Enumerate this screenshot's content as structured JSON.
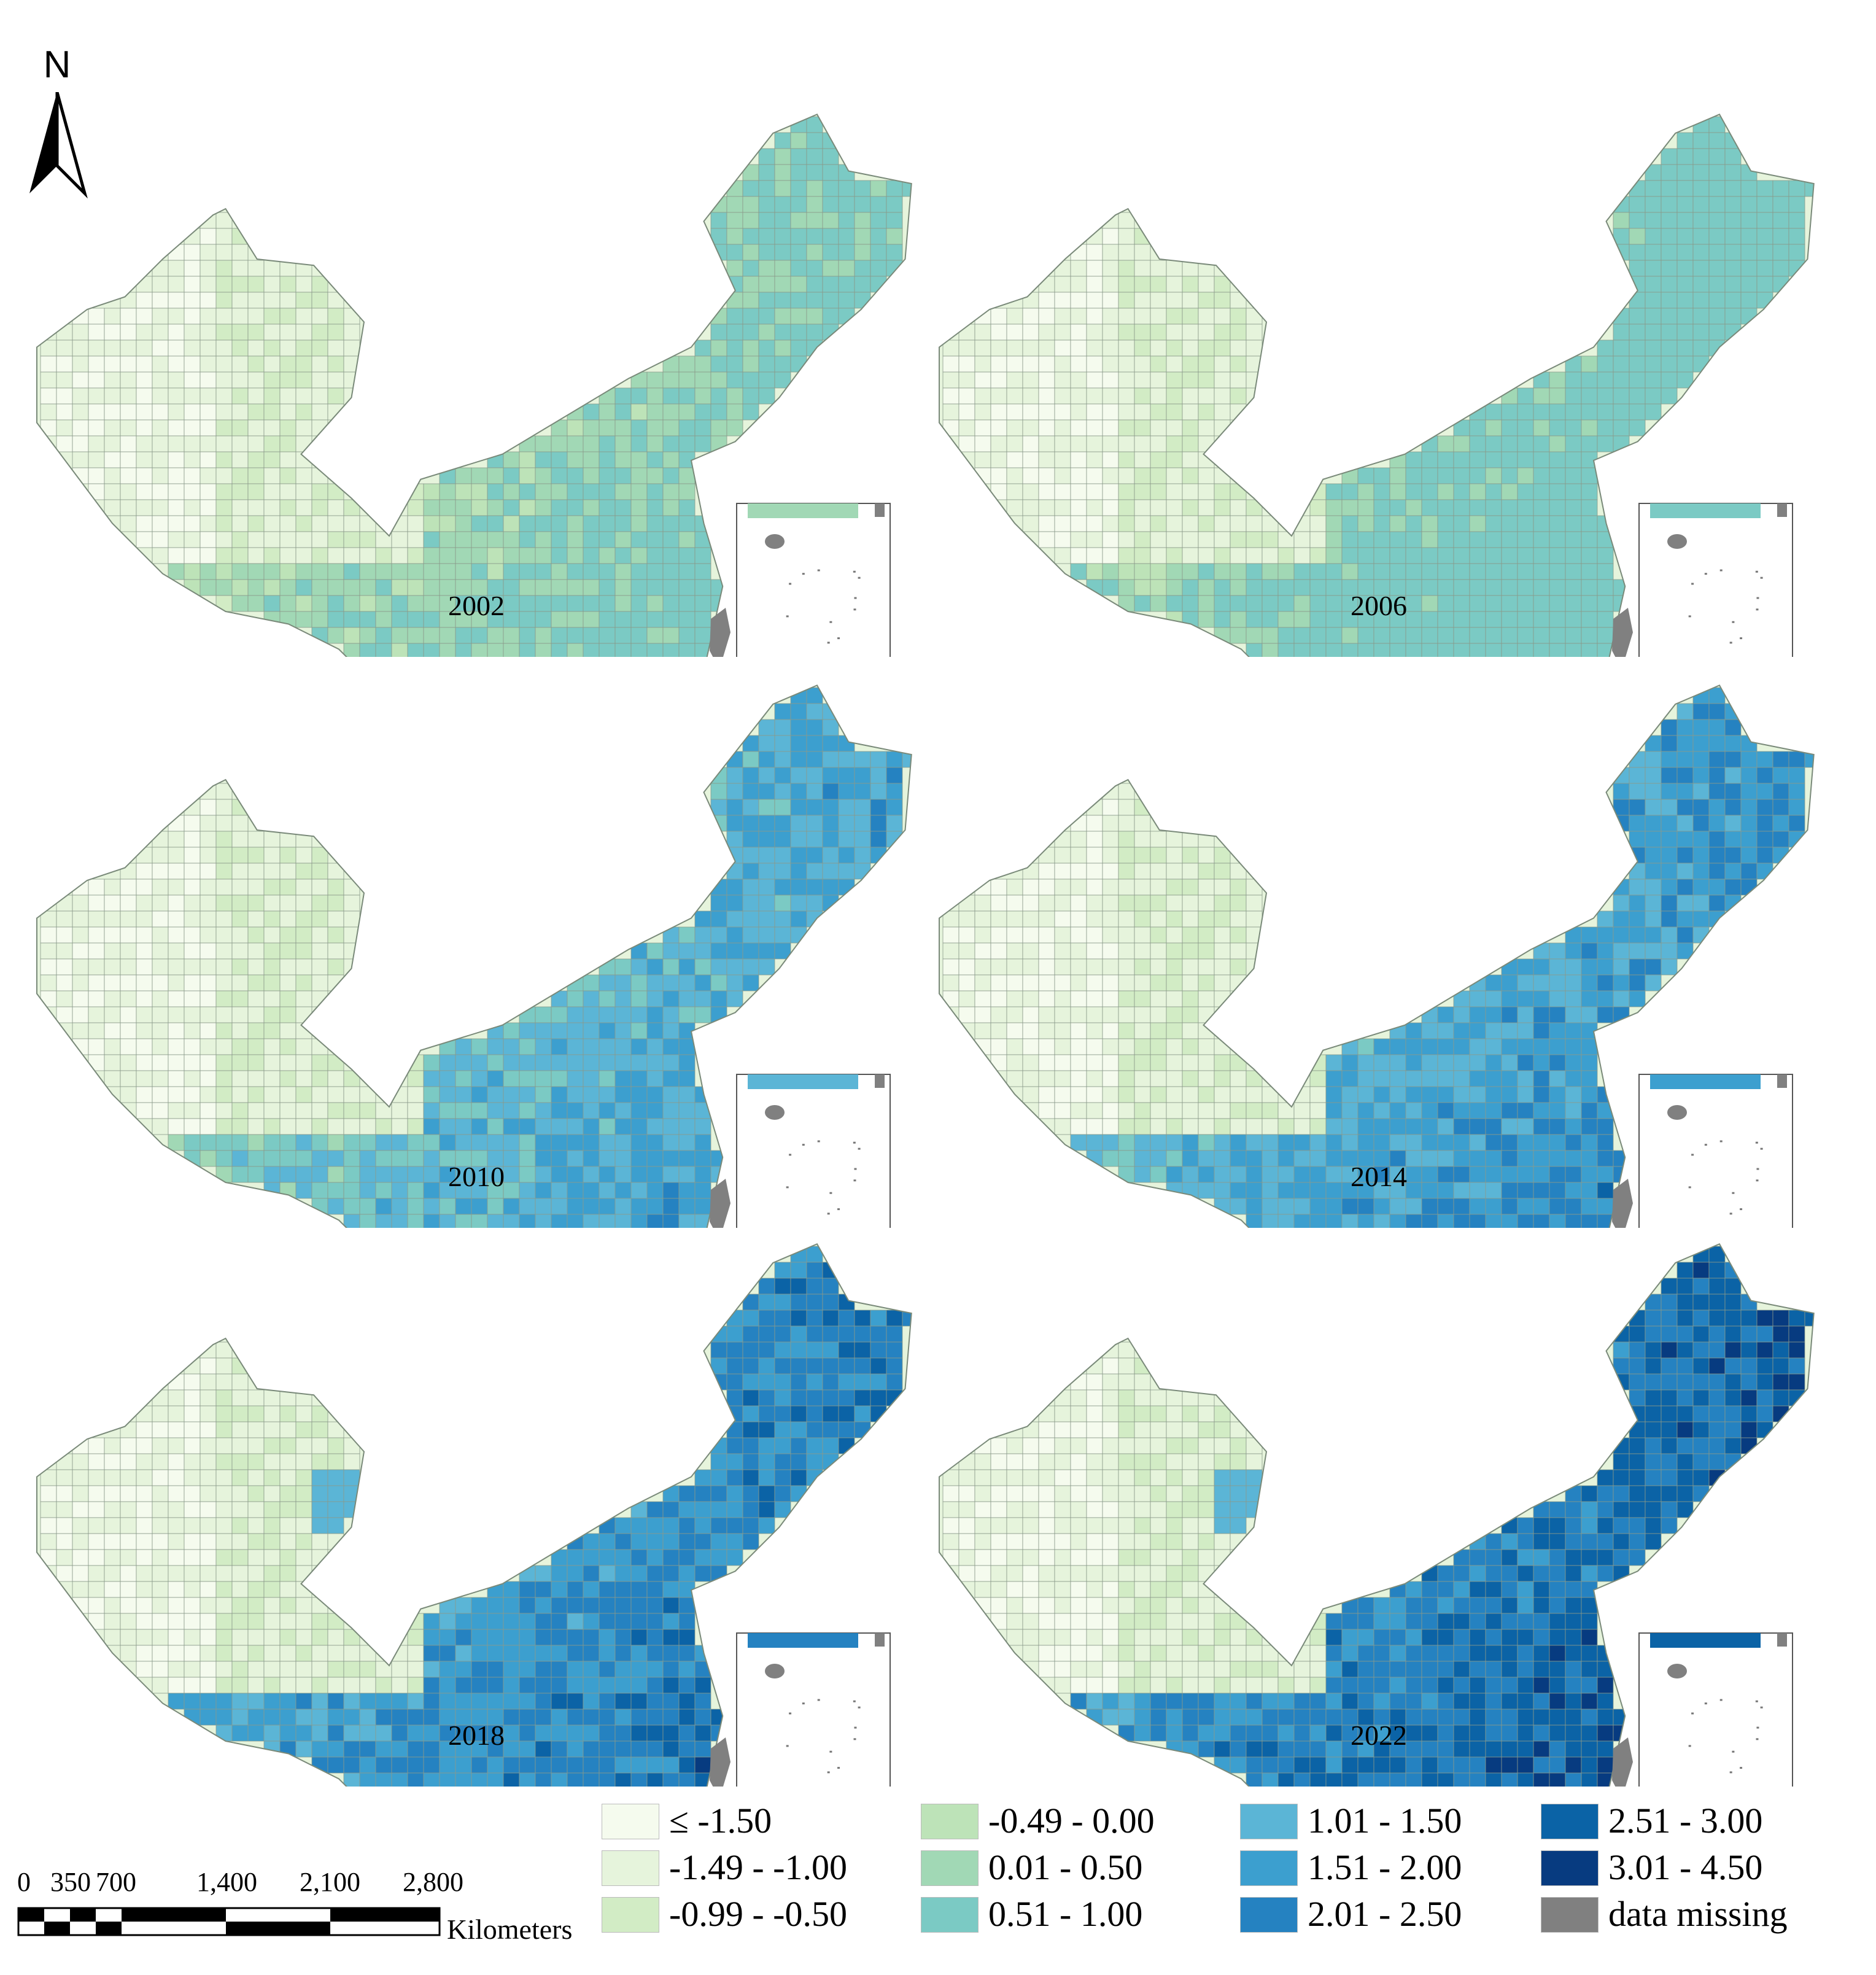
{
  "north_arrow": {
    "label": "N"
  },
  "panels": [
    {
      "year": "2002",
      "intensity": 0
    },
    {
      "year": "2006",
      "intensity": 1
    },
    {
      "year": "2010",
      "intensity": 2
    },
    {
      "year": "2014",
      "intensity": 3
    },
    {
      "year": "2018",
      "intensity": 4
    },
    {
      "year": "2022",
      "intensity": 5
    }
  ],
  "legend": {
    "items": [
      {
        "label": "≤  -1.50",
        "color": "#f5fbee"
      },
      {
        "label": "-1.49 - -1.00",
        "color": "#e6f4dc"
      },
      {
        "label": "-0.99 - -0.50",
        "color": "#d2ecc5"
      },
      {
        "label": "-0.49 - 0.00",
        "color": "#bde3b8"
      },
      {
        "label": "0.01 - 0.50",
        "color": "#a1d8b5"
      },
      {
        "label": "0.51 - 1.00",
        "color": "#7bcac4"
      },
      {
        "label": "1.01 - 1.50",
        "color": "#5bb5d6"
      },
      {
        "label": "1.51 - 2.00",
        "color": "#3c9fcf"
      },
      {
        "label": "2.01 - 2.50",
        "color": "#2582c1"
      },
      {
        "label": "2.51 - 3.00",
        "color": "#0b63a6"
      },
      {
        "label": "3.01 - 4.50",
        "color": "#073b80"
      },
      {
        "label": "data missing",
        "color": "#808080"
      }
    ]
  },
  "scale_bar": {
    "ticks": [
      "0",
      "350",
      "700",
      "1,400",
      "2,100",
      "2,800"
    ],
    "unit": "Kilometers"
  }
}
